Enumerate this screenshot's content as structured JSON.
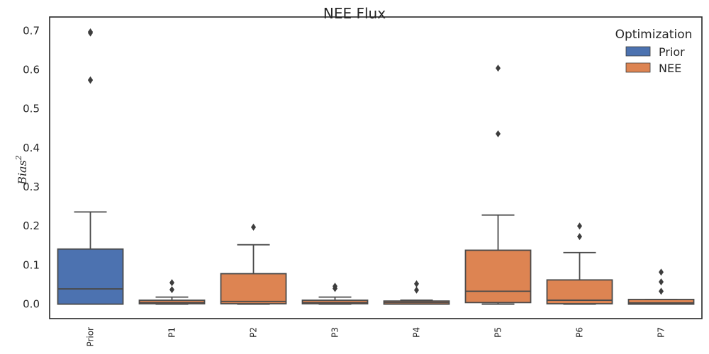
{
  "chart_data": {
    "type": "box",
    "title": "NEE Flux",
    "xlabel": "",
    "ylabel": "Bias",
    "ylabel_superscript": "2",
    "ylim": [
      -0.037,
      0.735
    ],
    "yticks": [
      "0.0",
      "0.1",
      "0.2",
      "0.3",
      "0.4",
      "0.5",
      "0.6",
      "0.7"
    ],
    "grid": false,
    "legend": {
      "title": "Optimization",
      "placement": "top-right",
      "entries": [
        {
          "label": "Prior",
          "color": "#4c72b0"
        },
        {
          "label": "NEE",
          "color": "#dd8452"
        }
      ]
    },
    "categories": [
      "Prior",
      "P1",
      "P2",
      "P3",
      "P4",
      "P5",
      "P6",
      "P7"
    ],
    "boxes": [
      {
        "category": "Prior",
        "group": "Prior",
        "whisker_low": 0.0,
        "q1": 0.0,
        "median": 0.039,
        "q3": 0.141,
        "whisker_high": 0.236,
        "outliers": [
          0.573,
          0.574,
          0.694,
          0.697
        ]
      },
      {
        "category": "P1",
        "group": "NEE",
        "whisker_low": 0.0,
        "q1": 0.001,
        "median": 0.004,
        "q3": 0.01,
        "whisker_high": 0.018,
        "outliers": [
          0.037,
          0.055
        ]
      },
      {
        "category": "P2",
        "group": "NEE",
        "whisker_low": 0.0,
        "q1": 0.001,
        "median": 0.007,
        "q3": 0.078,
        "whisker_high": 0.152,
        "outliers": [
          0.197
        ]
      },
      {
        "category": "P3",
        "group": "NEE",
        "whisker_low": 0.0,
        "q1": 0.001,
        "median": 0.004,
        "q3": 0.01,
        "whisker_high": 0.018,
        "outliers": [
          0.04,
          0.046
        ]
      },
      {
        "category": "P4",
        "group": "NEE",
        "whisker_low": 0.0,
        "q1": 0.0,
        "median": 0.004,
        "q3": 0.008,
        "whisker_high": 0.01,
        "outliers": [
          0.036,
          0.052
        ]
      },
      {
        "category": "P5",
        "group": "NEE",
        "whisker_low": 0.0,
        "q1": 0.004,
        "median": 0.033,
        "q3": 0.138,
        "whisker_high": 0.228,
        "outliers": [
          0.436,
          0.604
        ]
      },
      {
        "category": "P6",
        "group": "NEE",
        "whisker_low": 0.0,
        "q1": 0.001,
        "median": 0.01,
        "q3": 0.062,
        "whisker_high": 0.132,
        "outliers": [
          0.173,
          0.2
        ]
      },
      {
        "category": "P7",
        "group": "NEE",
        "whisker_low": 0.0,
        "q1": 0.0,
        "median": 0.003,
        "q3": 0.012,
        "whisker_high": 0.012,
        "outliers": [
          0.033,
          0.057,
          0.082
        ]
      }
    ]
  }
}
